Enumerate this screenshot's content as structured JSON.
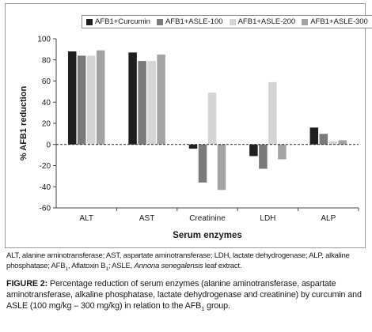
{
  "chart_data": {
    "type": "bar",
    "categories": [
      "ALT",
      "AST",
      "Creatinine",
      "LDH",
      "ALP"
    ],
    "series": [
      {
        "name": "AFB1+Curcumin",
        "values": [
          88,
          87,
          -4,
          -11,
          16
        ]
      },
      {
        "name": "AFB1+ASLE-100",
        "values": [
          84,
          79,
          -36,
          -23,
          10
        ]
      },
      {
        "name": "AFB1+ASLE-200",
        "values": [
          84,
          79,
          49,
          59,
          3
        ]
      },
      {
        "name": "AFB1+ASLE-300",
        "values": [
          89,
          85,
          -43,
          -14,
          4
        ]
      }
    ],
    "xlabel": "Serum enzymes",
    "ylabel": "% AFB1 reduction",
    "ylim": [
      -60,
      100
    ],
    "yticks": [
      -60,
      -40,
      -20,
      0,
      20,
      40,
      60,
      80,
      100
    ],
    "legend_position": "top",
    "zero_line": "dashed",
    "grid": false
  },
  "colors": [
    "#1f1f1f",
    "#7a7a7a",
    "#d4d4d4",
    "#a3a3a3"
  ],
  "footnote": {
    "text": "ALT, alanine aminotransferase; AST, aspartate aminotransferase; LDH, lactate dehydrogenase; ALP, alkaline phosphatase; AFB",
    "sub1": "1",
    "mid": ", Aflatoxin B",
    "sub2": "1",
    "tail": "; ASLE, ",
    "italic": "Annona senegalensis",
    "end": " leaf extract."
  },
  "caption": {
    "label": "FIGURE 2:",
    "text": " Percentage reduction of serum enzymes (alanine aminotransferase, aspartate aminotransferase, alkaline phosphatase, lactate dehydrogenase and creatinine) by curcumin and ASLE (100 mg/kg – 300 mg/kg) in relation to the AFB",
    "sub": "1",
    "end": " group."
  }
}
